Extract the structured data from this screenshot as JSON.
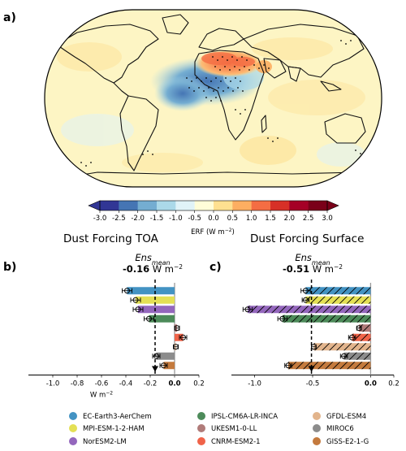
{
  "panel_labels": {
    "a": "a)",
    "b": "b)",
    "c": "c)"
  },
  "chart_data": [
    {
      "panel": "a",
      "type": "heatmap",
      "projection": "Robinson-like global map",
      "colorbar": {
        "label": "ERF (W m$^{-2}$)",
        "ticks": [
          -3.0,
          -2.5,
          -2.0,
          -1.5,
          -1.0,
          -0.5,
          0.0,
          0.5,
          1.0,
          1.5,
          2.0,
          2.5,
          3.0
        ],
        "tick_labels": [
          "-3.0",
          "-2.5",
          "-2.0",
          "-1.5",
          "-1.0",
          "-0.5",
          "0.0",
          "0.5",
          "1.0",
          "1.5",
          "2.0",
          "2.5",
          "3.0"
        ],
        "colors": [
          "#313695",
          "#4575b4",
          "#74add1",
          "#abd9e9",
          "#e0f3f8",
          "#fffdd8",
          "#fee090",
          "#fdae61",
          "#f46d43",
          "#d73027",
          "#a50026",
          "#7a0019"
        ],
        "extend": "both"
      },
      "subtitle_left": "Dust Forcing TOA",
      "subtitle_right": "Dust Forcing Surface"
    },
    {
      "panel": "b",
      "type": "bar",
      "orientation": "horizontal",
      "title_line1": "Ens",
      "title_sub": "mean",
      "title_value": "-0.16",
      "title_unit": " W m",
      "title_exp": "−2",
      "ens_mean": -0.16,
      "xlim": [
        -1.2,
        0.2
      ],
      "xticks": [
        -1.0,
        -0.8,
        -0.6,
        -0.4,
        -0.2,
        0.0,
        0.2
      ],
      "xtick_labels": [
        "-1.0",
        "-0.8",
        "-0.6",
        "-0.4",
        "-0.2",
        "0.0",
        "0.2"
      ],
      "xlabel": "W m",
      "xlabel_exp": "−2",
      "hatched": false,
      "models": [
        "EC-Earth3-AerChem",
        "MPI-ESM-1-2-HAM",
        "NorESM2-LM",
        "IPSL-CM6A-LR-INCA",
        "UKESM1-0-LL",
        "CNRM-ESM2-1",
        "GFDL-ESM4",
        "MIROC6",
        "GISS-E2-1-G"
      ],
      "values": [
        -0.39,
        -0.32,
        -0.3,
        -0.21,
        0.02,
        0.07,
        0.01,
        -0.15,
        -0.09
      ],
      "errors": [
        0.04,
        0.04,
        0.04,
        0.04,
        0.02,
        0.03,
        0.02,
        0.03,
        0.03
      ]
    },
    {
      "panel": "c",
      "type": "bar",
      "orientation": "horizontal",
      "title_line1": "Ens",
      "title_sub": "mean",
      "title_value": "-0.51",
      "title_unit": " W m",
      "title_exp": "−2",
      "ens_mean": -0.51,
      "xlim": [
        -1.2,
        0.2
      ],
      "xticks": [
        -1.0,
        -0.5,
        0.0,
        0.2
      ],
      "xtick_labels": [
        "-1.0",
        "-0.5",
        "0.0",
        "0.2"
      ],
      "hatched": true,
      "models": [
        "EC-Earth3-AerChem",
        "MPI-ESM-1-2-HAM",
        "NorESM2-LM",
        "IPSL-CM6A-LR-INCA",
        "UKESM1-0-LL",
        "CNRM-ESM2-1",
        "GFDL-ESM4",
        "MIROC6",
        "GISS-E2-1-G"
      ],
      "values": [
        -0.56,
        -0.56,
        -1.06,
        -0.76,
        -0.1,
        -0.16,
        -0.49,
        -0.23,
        -0.71
      ],
      "errors": [
        0.04,
        0.03,
        0.04,
        0.04,
        0.02,
        0.03,
        0.02,
        0.03,
        0.03
      ]
    }
  ],
  "legend": {
    "placement": "bottom",
    "entries": [
      {
        "name": "EC-Earth3-AerChem",
        "color": "#4393c3"
      },
      {
        "name": "MPI-ESM-1-2-HAM",
        "color": "#e4e055"
      },
      {
        "name": "NorESM2-LM",
        "color": "#9467bd"
      },
      {
        "name": "IPSL-CM6A-LR-INCA",
        "color": "#4d8b5a"
      },
      {
        "name": "UKESM1-0-LL",
        "color": "#b07b79"
      },
      {
        "name": "CNRM-ESM2-1",
        "color": "#f06349"
      },
      {
        "name": "GFDL-ESM4",
        "color": "#e2b48c"
      },
      {
        "name": "MIROC6",
        "color": "#8c8c8c"
      },
      {
        "name": "GISS-E2-1-G",
        "color": "#c47a3d"
      }
    ]
  }
}
